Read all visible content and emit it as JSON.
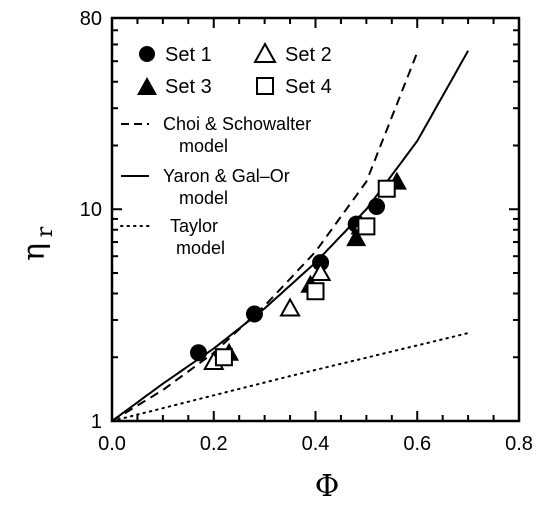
{
  "chart_data": {
    "type": "scatter",
    "xlabel": "Φ",
    "ylabel": "η",
    "ylabel_sub": "r",
    "xlim": [
      0.0,
      0.8
    ],
    "ylim": [
      1,
      80
    ],
    "yscale": "log",
    "x_ticks": [
      "0.0",
      "0.2",
      "0.4",
      "0.6",
      "0.8"
    ],
    "y_ticks": [
      "1",
      "10",
      "80"
    ],
    "legend_position": "upper-left",
    "series": [
      {
        "name": "Set 1",
        "marker": "filled-circle",
        "points": [
          [
            0.17,
            2.1
          ],
          [
            0.28,
            3.2
          ],
          [
            0.41,
            5.6
          ],
          [
            0.48,
            8.5
          ],
          [
            0.52,
            10.3
          ]
        ]
      },
      {
        "name": "Set 2",
        "marker": "open-triangle",
        "points": [
          [
            0.2,
            1.9
          ],
          [
            0.35,
            3.4
          ],
          [
            0.41,
            5.0
          ],
          [
            0.49,
            8.3
          ]
        ]
      },
      {
        "name": "Set 3",
        "marker": "filled-triangle",
        "points": [
          [
            0.23,
            2.1
          ],
          [
            0.39,
            4.4
          ],
          [
            0.48,
            7.3
          ],
          [
            0.56,
            13.5
          ]
        ]
      },
      {
        "name": "Set 4",
        "marker": "open-square",
        "points": [
          [
            0.22,
            2.0
          ],
          [
            0.4,
            4.1
          ],
          [
            0.5,
            8.3
          ],
          [
            0.54,
            12.5
          ]
        ]
      }
    ],
    "lines": [
      {
        "name": "Choi & Schowalter model",
        "style": "dashed",
        "points": [
          [
            0.0,
            1.0
          ],
          [
            0.1,
            1.4
          ],
          [
            0.2,
            2.1
          ],
          [
            0.3,
            3.5
          ],
          [
            0.4,
            6.3
          ],
          [
            0.5,
            13.5
          ],
          [
            0.6,
            55.0
          ]
        ]
      },
      {
        "name": "Yaron & Gal–Or model",
        "style": "solid",
        "points": [
          [
            0.0,
            1.0
          ],
          [
            0.1,
            1.5
          ],
          [
            0.2,
            2.2
          ],
          [
            0.3,
            3.4
          ],
          [
            0.4,
            5.6
          ],
          [
            0.5,
            10.0
          ],
          [
            0.6,
            21.0
          ],
          [
            0.7,
            56.0
          ]
        ]
      },
      {
        "name": "Taylor model",
        "style": "dotted",
        "points": [
          [
            0.0,
            1.0
          ],
          [
            0.35,
            1.63
          ],
          [
            0.7,
            2.6
          ]
        ]
      }
    ],
    "legend": {
      "set1": "Set 1",
      "set2": "Set 2",
      "set3": "Set 3",
      "set4": "Set 4",
      "choi_l1": "Choi & Schowalter",
      "choi_l2": "model",
      "yaron_l1": "Yaron & Gal–Or",
      "yaron_l2": "model",
      "taylor_l1": "Taylor",
      "taylor_l2": "model"
    }
  }
}
